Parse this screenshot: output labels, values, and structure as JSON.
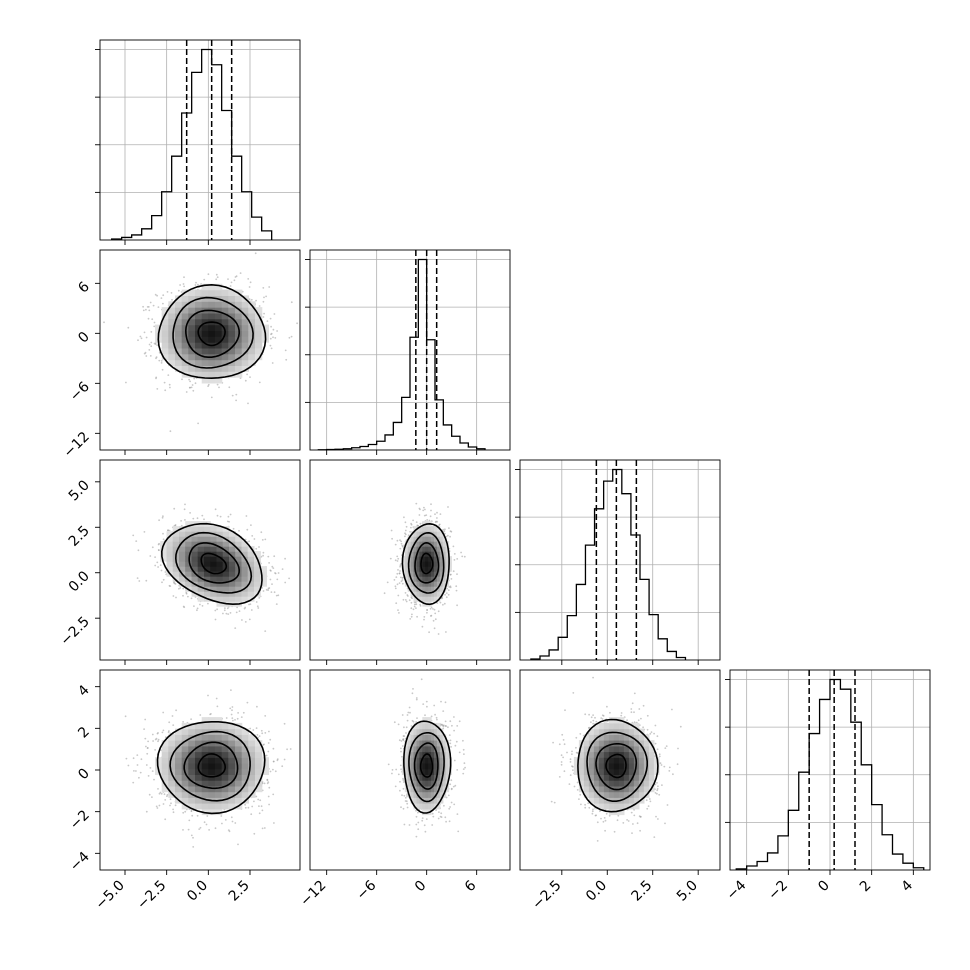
{
  "chart_data": {
    "type": "corner",
    "title": "",
    "parameters": [
      {
        "label": "",
        "range": [
          -6.5,
          5.5
        ],
        "ticks": [
          -5.0,
          -2.5,
          0.0,
          2.5
        ],
        "tick_labels": [
          "−5.0",
          "−2.5",
          "0.0",
          "2.5"
        ],
        "quantiles": [
          -1.3,
          0.2,
          1.4
        ]
      },
      {
        "label": "",
        "range": [
          -14,
          10
        ],
        "ticks": [
          -12,
          -6,
          0,
          6
        ],
        "tick_labels": [
          "−12",
          "−6",
          "0",
          "6"
        ],
        "quantiles": [
          -1.3,
          0.0,
          1.2
        ]
      },
      {
        "label": "",
        "range": [
          -4.8,
          6.2
        ],
        "ticks": [
          -2.5,
          0.0,
          2.5,
          5.0
        ],
        "tick_labels": [
          "−2.5",
          "0.0",
          "2.5",
          "5.0"
        ],
        "quantiles": [
          -0.6,
          0.5,
          1.6
        ]
      },
      {
        "label": "",
        "range": [
          -4.8,
          4.8
        ],
        "ticks": [
          -4,
          -2,
          0,
          2,
          4
        ],
        "tick_labels": [
          "−4",
          "−2",
          "0",
          "2",
          "4"
        ],
        "quantiles": [
          -1.0,
          0.2,
          1.2
        ]
      }
    ],
    "histograms": [
      {
        "param": 0,
        "bins": [
          -5.8,
          -5.2,
          -4.6,
          -4.0,
          -3.4,
          -2.8,
          -2.2,
          -1.6,
          -1.0,
          -0.4,
          0.2,
          0.8,
          1.4,
          2.0,
          2.6,
          3.2,
          3.8
        ],
        "values": [
          2,
          5,
          10,
          22,
          48,
          95,
          165,
          250,
          330,
          375,
          345,
          255,
          165,
          95,
          45,
          18
        ]
      },
      {
        "param": 1,
        "bins": [
          -13,
          -12,
          -11,
          -10,
          -9,
          -8,
          -7,
          -6,
          -5,
          -4,
          -3,
          -2,
          -1,
          0,
          1,
          2,
          3,
          4,
          5,
          6,
          7
        ],
        "values": [
          1,
          2,
          3,
          5,
          9,
          14,
          22,
          35,
          60,
          110,
          210,
          450,
          760,
          440,
          200,
          100,
          55,
          28,
          12,
          5
        ]
      },
      {
        "param": 2,
        "bins": [
          -4.2,
          -3.7,
          -3.2,
          -2.7,
          -2.2,
          -1.7,
          -1.2,
          -0.7,
          -0.2,
          0.3,
          0.8,
          1.3,
          1.8,
          2.3,
          2.8,
          3.3,
          3.8,
          4.3
        ],
        "values": [
          2,
          8,
          20,
          45,
          88,
          150,
          228,
          300,
          355,
          378,
          330,
          248,
          160,
          90,
          42,
          17,
          5
        ]
      },
      {
        "param": 3,
        "bins": [
          -4.5,
          -4.0,
          -3.5,
          -3.0,
          -2.5,
          -2.0,
          -1.5,
          -1.0,
          -0.5,
          0.0,
          0.5,
          1.0,
          1.5,
          2.0,
          2.5,
          3.0,
          3.5,
          4.0,
          4.5
        ],
        "values": [
          2,
          7,
          15,
          30,
          60,
          105,
          172,
          240,
          300,
          335,
          318,
          260,
          185,
          115,
          62,
          28,
          12,
          4
        ]
      }
    ],
    "joint_distributions": [
      {
        "x_param": 0,
        "y_param": 1,
        "center": [
          0.2,
          0.0
        ],
        "sigma": [
          1.6,
          2.8
        ],
        "correlation": 0.0
      },
      {
        "x_param": 0,
        "y_param": 2,
        "center": [
          0.3,
          0.5
        ],
        "sigma": [
          1.5,
          1.1
        ],
        "correlation": -0.3
      },
      {
        "x_param": 1,
        "y_param": 2,
        "center": [
          0.0,
          0.5
        ],
        "sigma": [
          1.4,
          1.1
        ],
        "correlation": 0.0
      },
      {
        "x_param": 0,
        "y_param": 3,
        "center": [
          0.2,
          0.2
        ],
        "sigma": [
          1.6,
          1.1
        ],
        "correlation": 0.0
      },
      {
        "x_param": 1,
        "y_param": 3,
        "center": [
          0.0,
          0.2
        ],
        "sigma": [
          1.4,
          1.1
        ],
        "correlation": 0.0
      },
      {
        "x_param": 2,
        "y_param": 3,
        "center": [
          0.5,
          0.2
        ],
        "sigma": [
          1.1,
          1.1
        ],
        "correlation": 0.0
      }
    ],
    "contour_levels_sigma": [
      0.5,
      1.0,
      1.5,
      2.0
    ],
    "grid": true,
    "legend": "none"
  }
}
